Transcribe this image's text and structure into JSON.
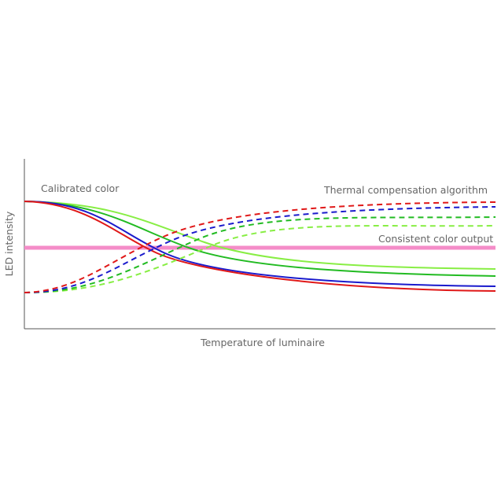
{
  "annotations": {
    "calibrated": "Calibrated color",
    "compensation": "Thermal compensation algorithm",
    "consistent": "Consistent color output"
  },
  "axes": {
    "x_title": "Temperature of luminaire",
    "y_title": "LED intensity"
  }
}
